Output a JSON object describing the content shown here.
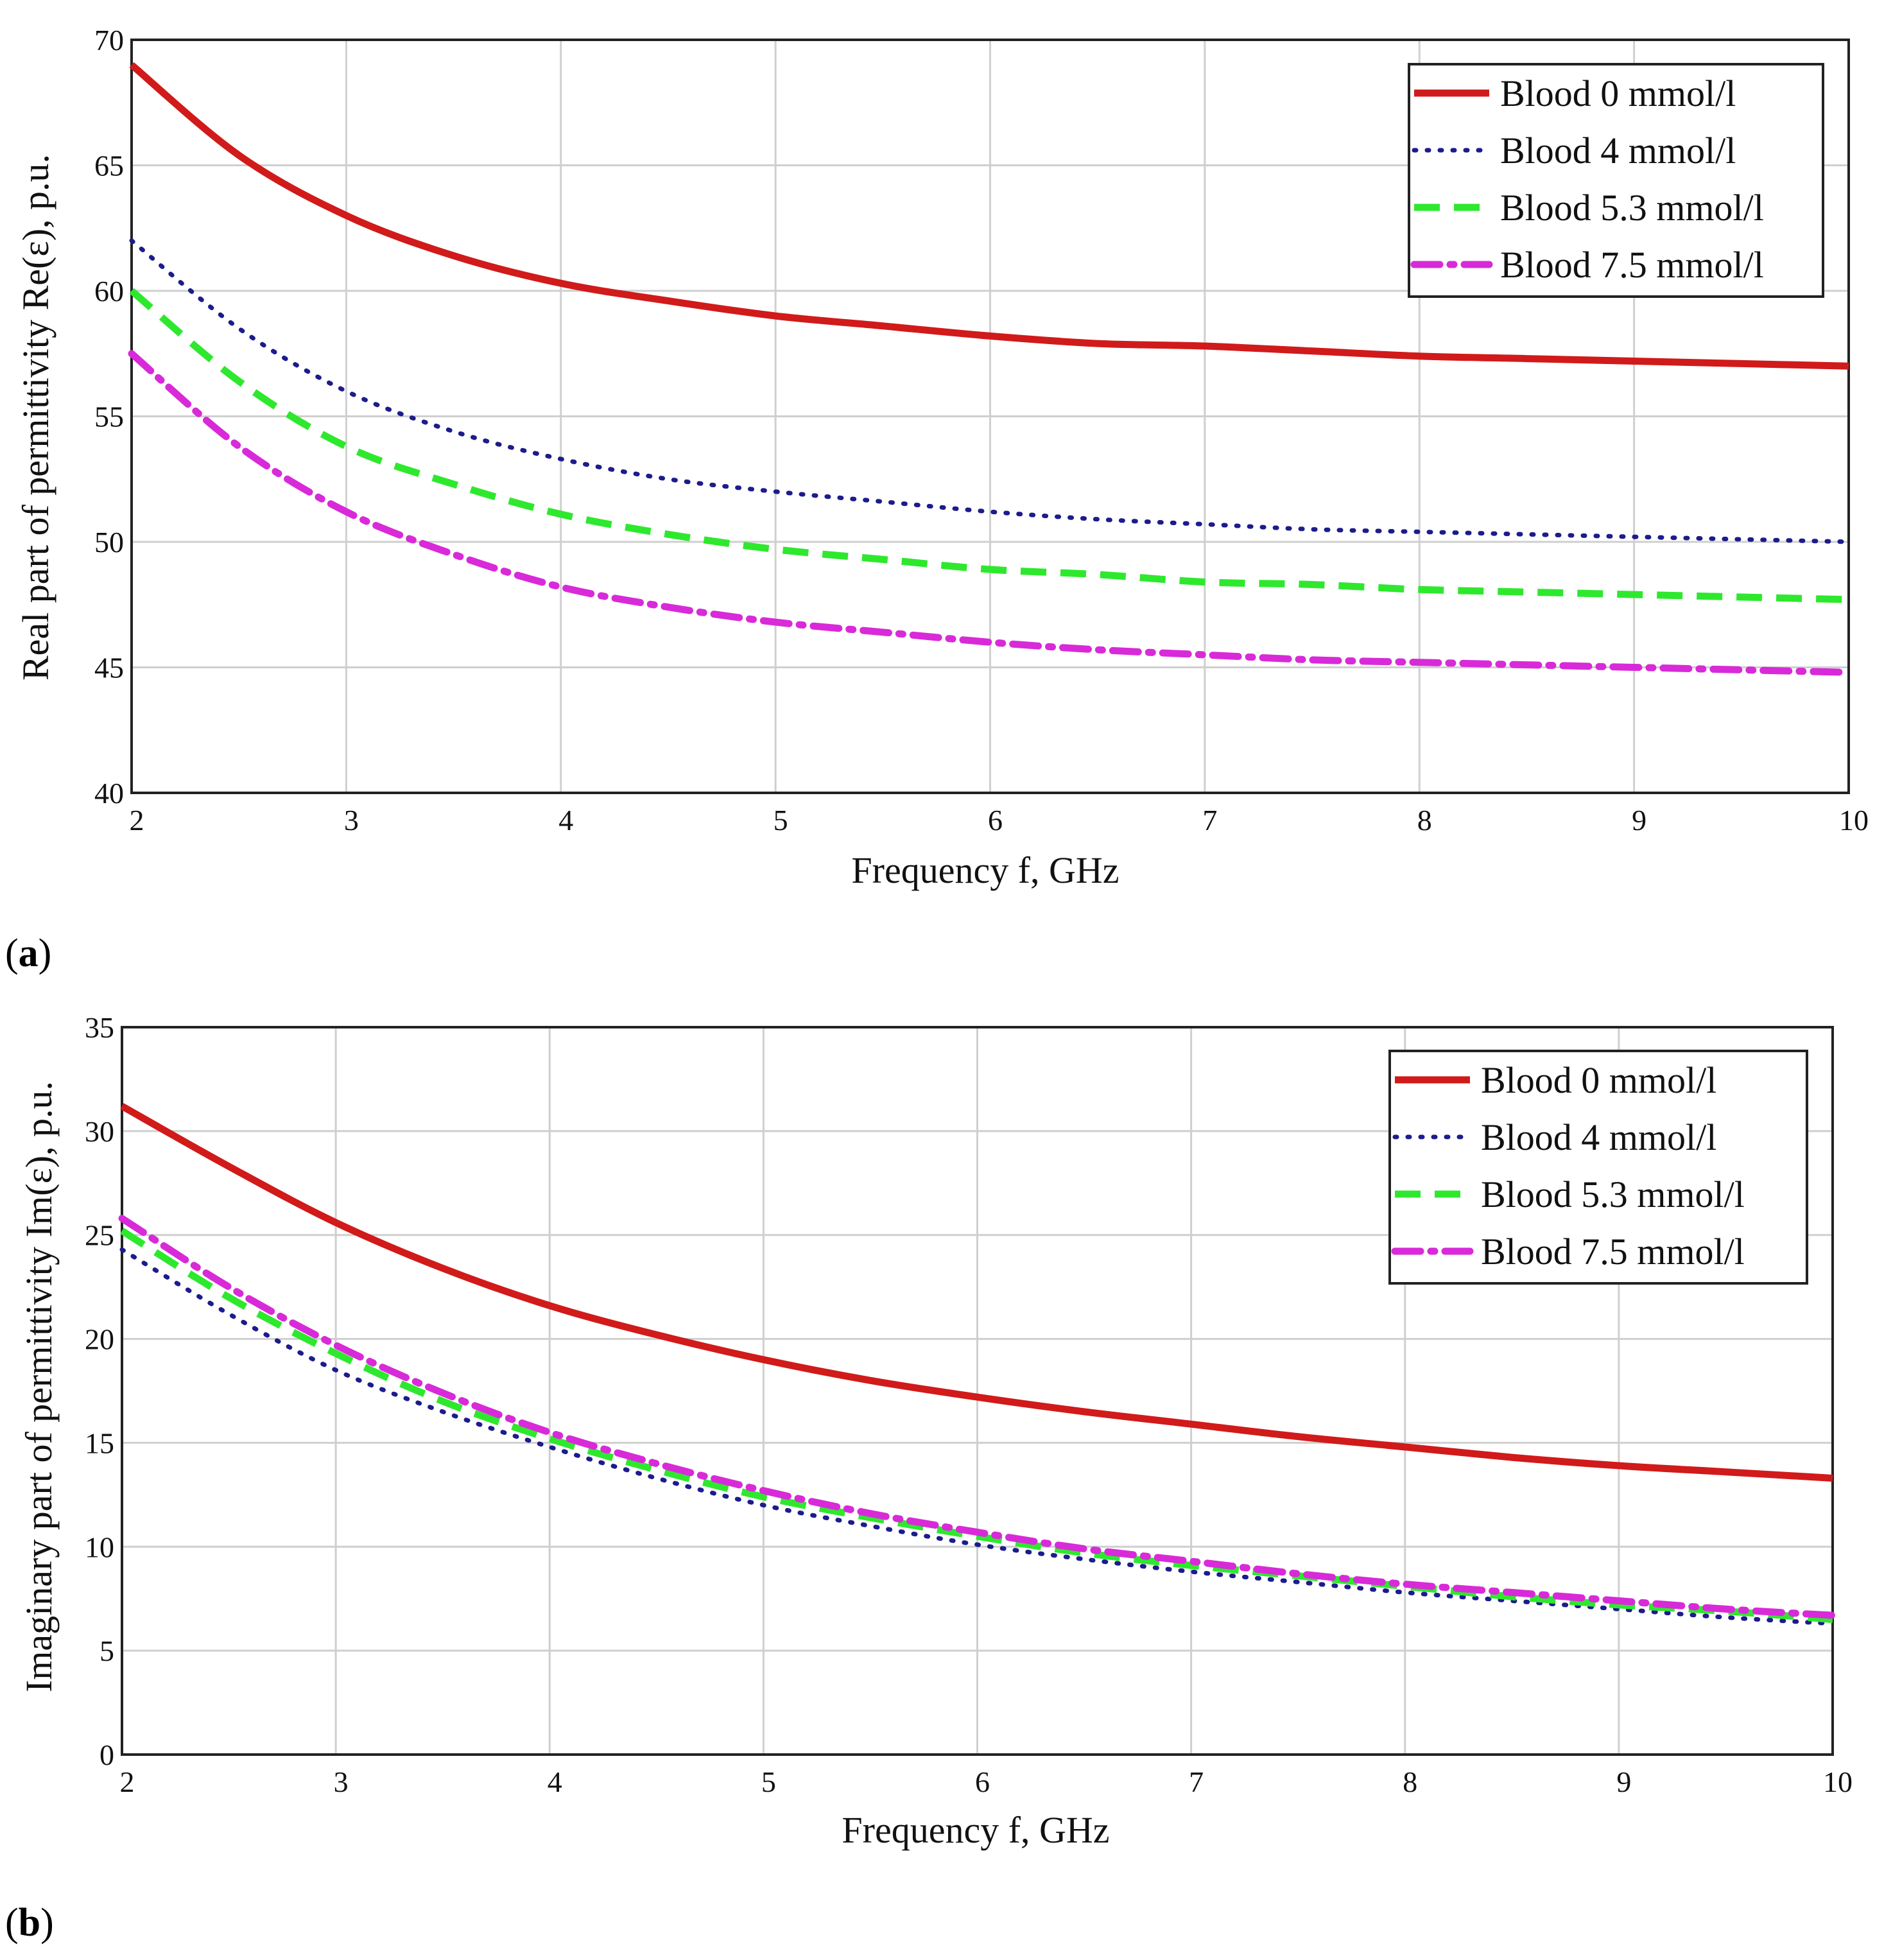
{
  "chart_data": [
    {
      "type": "line",
      "panel_label": "(a)",
      "panel_letter": "a",
      "title": "",
      "xlabel": "Frequency f, GHz",
      "ylabel": "Real part of permittivity Re(ε), p.u.",
      "xlim": [
        2,
        10
      ],
      "ylim": [
        40,
        70
      ],
      "xticks": [
        2,
        3,
        4,
        5,
        6,
        7,
        8,
        9,
        10
      ],
      "yticks": [
        40,
        45,
        50,
        55,
        60,
        65,
        70
      ],
      "grid": true,
      "legend_position": "top-right",
      "x": [
        2,
        2.5,
        3,
        3.5,
        4,
        4.5,
        5,
        5.5,
        6,
        6.5,
        7,
        7.5,
        8,
        8.5,
        9,
        9.5,
        10
      ],
      "series": [
        {
          "name": "Blood 0 mmol/l",
          "style": "solid",
          "color": "#d11a1a",
          "values": [
            69.0,
            65.4,
            63.0,
            61.4,
            60.3,
            59.6,
            59.0,
            58.6,
            58.2,
            57.9,
            57.8,
            57.6,
            57.4,
            57.3,
            57.2,
            57.1,
            57.0
          ]
        },
        {
          "name": "Blood 4 mmol/l",
          "style": "dotted",
          "color": "#1c1c8c",
          "values": [
            62.0,
            58.5,
            56.0,
            54.4,
            53.3,
            52.5,
            52.0,
            51.6,
            51.2,
            50.9,
            50.7,
            50.5,
            50.4,
            50.3,
            50.2,
            50.1,
            50.0
          ]
        },
        {
          "name": "Blood 5.3 mmol/l",
          "style": "dashed",
          "color": "#2ee82e",
          "values": [
            60.0,
            56.4,
            53.8,
            52.3,
            51.1,
            50.3,
            49.7,
            49.3,
            48.9,
            48.7,
            48.4,
            48.3,
            48.1,
            48.0,
            47.9,
            47.8,
            47.7
          ]
        },
        {
          "name": "Blood 7.5 mmol/l",
          "style": "dashdot",
          "color": "#d82ad8",
          "values": [
            57.5,
            53.8,
            51.2,
            49.5,
            48.2,
            47.4,
            46.8,
            46.4,
            46.0,
            45.7,
            45.5,
            45.3,
            45.2,
            45.1,
            45.0,
            44.9,
            44.8
          ]
        }
      ]
    },
    {
      "type": "line",
      "panel_label": "(b)",
      "panel_letter": "b",
      "title": "",
      "xlabel": "Frequency f, GHz",
      "ylabel": "Imaginary part of permittivity Im(ε), p.u.",
      "xlim": [
        2,
        10
      ],
      "ylim": [
        0,
        35
      ],
      "xticks": [
        2,
        3,
        4,
        5,
        6,
        7,
        8,
        9,
        10
      ],
      "yticks": [
        0,
        5,
        10,
        15,
        20,
        25,
        30,
        35
      ],
      "grid": true,
      "legend_position": "top-right",
      "x": [
        2,
        2.5,
        3,
        3.5,
        4,
        4.5,
        5,
        5.5,
        6,
        6.5,
        7,
        7.5,
        8,
        8.5,
        9,
        9.5,
        10
      ],
      "series": [
        {
          "name": "Blood 0 mmol/l",
          "style": "solid",
          "color": "#d11a1a",
          "values": [
            31.2,
            28.3,
            25.6,
            23.4,
            21.6,
            20.2,
            19.0,
            18.0,
            17.2,
            16.5,
            15.9,
            15.3,
            14.8,
            14.3,
            13.9,
            13.6,
            13.3
          ]
        },
        {
          "name": "Blood 4 mmol/l",
          "style": "dotted",
          "color": "#1c1c8c",
          "values": [
            24.3,
            21.2,
            18.5,
            16.5,
            14.8,
            13.3,
            12.0,
            11.0,
            10.1,
            9.4,
            8.8,
            8.3,
            7.8,
            7.4,
            7.0,
            6.6,
            6.3
          ]
        },
        {
          "name": "Blood 5.3 mmol/l",
          "style": "dashed",
          "color": "#2ee82e",
          "values": [
            25.2,
            22.0,
            19.3,
            17.0,
            15.2,
            13.7,
            12.4,
            11.4,
            10.5,
            9.7,
            9.1,
            8.6,
            8.1,
            7.6,
            7.2,
            6.9,
            6.5
          ]
        },
        {
          "name": "Blood 7.5 mmol/l",
          "style": "dashdot",
          "color": "#d82ad8",
          "values": [
            25.8,
            22.5,
            19.7,
            17.4,
            15.5,
            14.0,
            12.7,
            11.6,
            10.7,
            9.9,
            9.3,
            8.7,
            8.2,
            7.8,
            7.4,
            7.0,
            6.7
          ]
        }
      ]
    }
  ]
}
